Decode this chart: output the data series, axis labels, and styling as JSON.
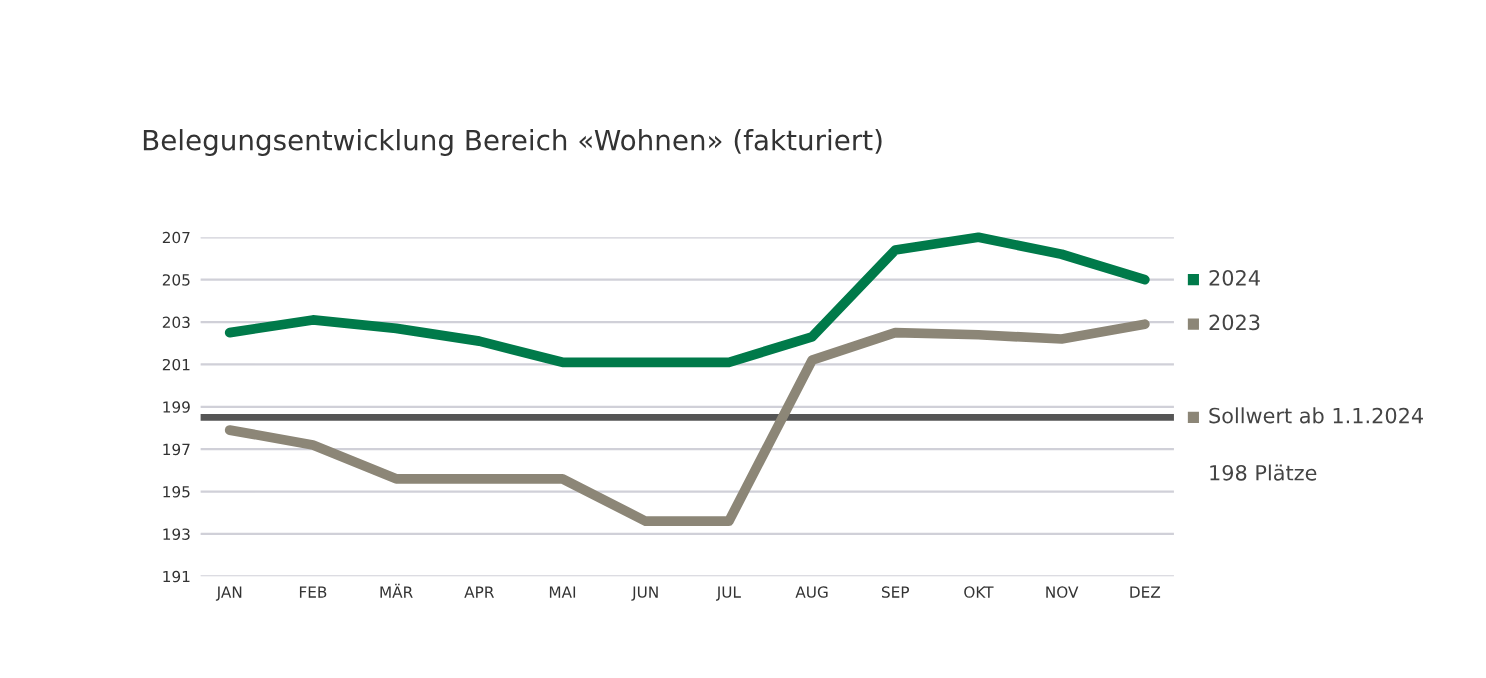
{
  "chart_data": {
    "type": "line",
    "title": "Belegungsentwicklung Bereich «Wohnen» (fakturiert)",
    "categories": [
      "JAN",
      "FEB",
      "MÄR",
      "APR",
      "MAI",
      "JUN",
      "JUL",
      "AUG",
      "SEP",
      "OKT",
      "NOV",
      "DEZ"
    ],
    "series": [
      {
        "name": "2024",
        "color": "#007a4a",
        "values": [
          202.5,
          203.1,
          202.7,
          202.1,
          201.1,
          201.1,
          201.1,
          202.3,
          206.4,
          207.0,
          206.2,
          205.0
        ]
      },
      {
        "name": "2023",
        "color": "#8c8677",
        "values": [
          197.9,
          197.2,
          195.6,
          195.6,
          195.6,
          193.6,
          193.6,
          201.2,
          202.5,
          202.4,
          202.2,
          202.9
        ]
      }
    ],
    "ref_lines": [
      {
        "axis": "y",
        "value": 198.5,
        "label": "Sollwert ab 1.1.2024",
        "color": "#555555"
      }
    ],
    "annotations": [
      "198 Plätze"
    ],
    "ylim": [
      191,
      207
    ],
    "yticks": [
      191,
      193,
      195,
      197,
      199,
      201,
      203,
      205,
      207
    ],
    "grid": "y",
    "legend": "right"
  }
}
